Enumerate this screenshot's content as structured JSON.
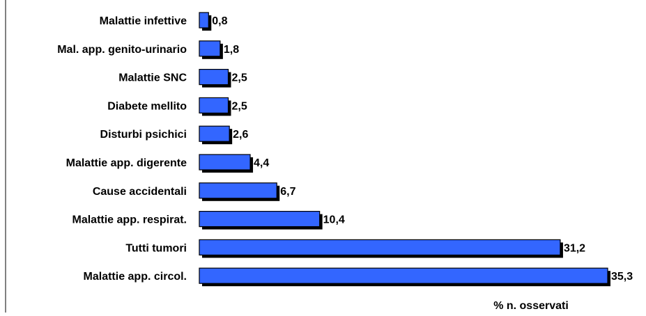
{
  "chart_data": {
    "type": "bar",
    "orientation": "horizontal",
    "categories": [
      "Malattie infettive",
      "Mal. app. genito-urinario",
      "Malattie SNC",
      "Diabete mellito",
      "Disturbi psichici",
      "Malattie app. digerente",
      "Cause accidentali",
      "Malattie app. respirat.",
      "Tutti tumori",
      "Malattie app. circol."
    ],
    "values": [
      0.8,
      1.8,
      2.5,
      2.5,
      2.6,
      4.4,
      6.7,
      10.4,
      31.2,
      35.3
    ],
    "value_labels": [
      "0,8",
      "1,8",
      "2,5",
      "2,5",
      "2,6",
      "4,4",
      "6,7",
      "10,4",
      "31,2",
      "35,3"
    ],
    "title": "",
    "xlabel": "% n. osservati",
    "ylabel": "",
    "xlim": [
      0,
      35.3
    ],
    "grid": false,
    "legend": "none",
    "colors": {
      "bar_fill": "#3366ff",
      "bar_shadow": "#000000",
      "bar_border": "#000000",
      "text": "#000000",
      "axis": "#000000"
    }
  }
}
